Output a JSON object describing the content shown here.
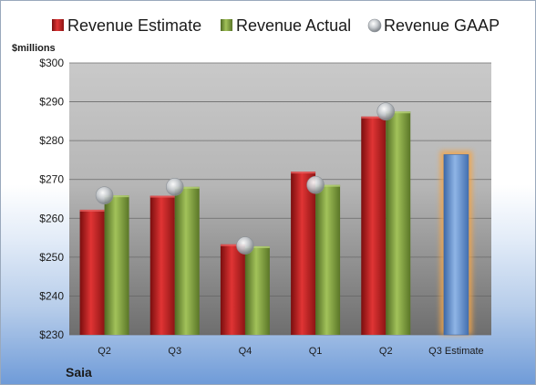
{
  "chart_data": {
    "type": "bar",
    "title": "",
    "xlabel": "",
    "ylabel": "",
    "unit_label": "$millions",
    "company": "Saia",
    "categories": [
      "Q2",
      "Q3",
      "Q4",
      "Q1",
      "Q2",
      "Q3 Estimate"
    ],
    "ylim": [
      230,
      300
    ],
    "yticks": [
      "$230",
      "$240",
      "$250",
      "$260",
      "$270",
      "$280",
      "$290",
      "$300"
    ],
    "ytick_values": [
      230,
      240,
      250,
      260,
      270,
      280,
      290,
      300
    ],
    "grid": true,
    "legend_position": "top",
    "series": [
      {
        "name": "Revenue Estimate",
        "kind": "bar",
        "color": "#cc2222",
        "values": [
          262.2,
          265.8,
          253.3,
          272.0,
          286.2,
          null
        ]
      },
      {
        "name": "Revenue Actual",
        "kind": "bar",
        "color": "#8aab45",
        "values": [
          265.9,
          268.1,
          252.8,
          268.6,
          287.5,
          null
        ]
      },
      {
        "name": "Revenue GAAP",
        "kind": "marker",
        "color": "#c4c8cc",
        "values": [
          265.9,
          268.1,
          253.0,
          268.6,
          287.5,
          null
        ]
      }
    ],
    "estimate_bar": {
      "category_index": 5,
      "value": 276.4,
      "color": "#6f9bd8",
      "glow": "#f3a54a"
    }
  }
}
